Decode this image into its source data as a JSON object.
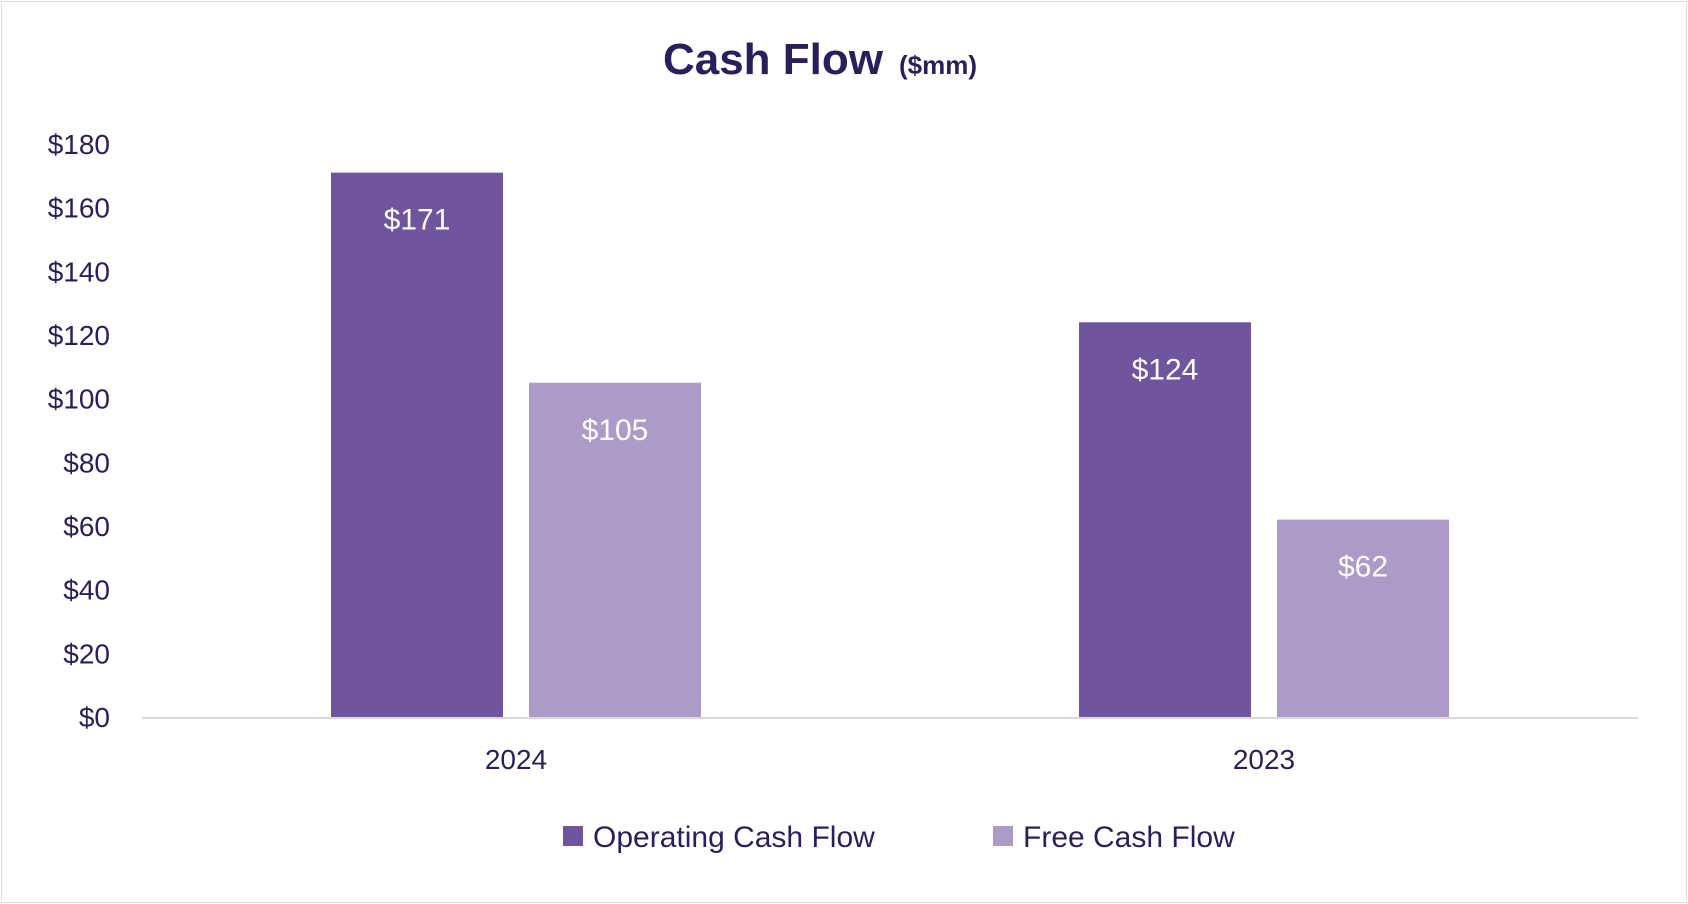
{
  "chart_data": {
    "type": "bar",
    "title": "Cash Flow",
    "subtitle": "($mm)",
    "categories": [
      "2024",
      "2023"
    ],
    "series": [
      {
        "name": "Operating Cash Flow",
        "values": [
          171,
          124
        ],
        "labels": [
          "$171",
          "$124"
        ],
        "color": "#70559e"
      },
      {
        "name": "Free Cash Flow",
        "values": [
          105,
          62
        ],
        "labels": [
          "$105",
          "$62"
        ],
        "color": "#ad9ac9"
      }
    ],
    "ylim": [
      0,
      180
    ],
    "yticks": [
      0,
      20,
      40,
      60,
      80,
      100,
      120,
      140,
      160,
      180
    ],
    "ytick_labels": [
      "$0",
      "$20",
      "$40",
      "$60",
      "$80",
      "$100",
      "$120",
      "$140",
      "$160",
      "$180"
    ],
    "xlabel": "",
    "ylabel": "",
    "grid": false,
    "legend_position": "bottom-center"
  },
  "colors": {
    "title": "#2a1f5c",
    "axis_text": "#2a1f5c",
    "axis_line": "#d9d9d9",
    "data_label": "#ffffff"
  }
}
